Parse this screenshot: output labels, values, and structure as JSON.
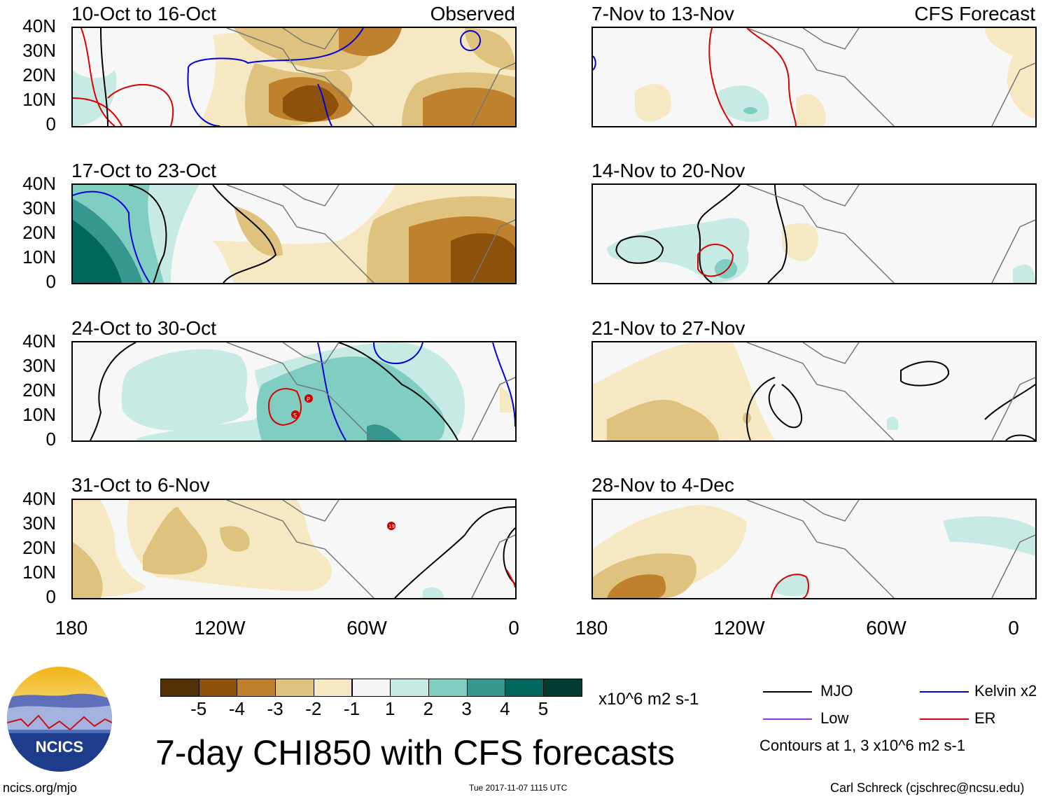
{
  "panels": [
    {
      "title": "10-Oct to 16-Oct",
      "subtitle": "Observed"
    },
    {
      "title": "7-Nov to 13-Nov",
      "subtitle": "CFS Forecast"
    },
    {
      "title": "17-Oct to 23-Oct",
      "subtitle": ""
    },
    {
      "title": "14-Nov to 20-Nov",
      "subtitle": ""
    },
    {
      "title": "24-Oct to 30-Oct",
      "subtitle": ""
    },
    {
      "title": "21-Nov to 27-Nov",
      "subtitle": ""
    },
    {
      "title": "31-Oct to 6-Nov",
      "subtitle": ""
    },
    {
      "title": "28-Nov to 4-Dec",
      "subtitle": ""
    }
  ],
  "lat_labels": [
    "40N",
    "30N",
    "20N",
    "10N",
    "0"
  ],
  "lon_labels": [
    "180",
    "120W",
    "60W",
    "0"
  ],
  "colorbar": {
    "labels": [
      "-5",
      "-4",
      "-3",
      "-2",
      "-1",
      "1",
      "2",
      "3",
      "4",
      "5"
    ],
    "colors": [
      "#543005",
      "#8c510a",
      "#bf812d",
      "#dfc27d",
      "#f6e8c3",
      "#f5f5f5",
      "#c7eae5",
      "#80cdc1",
      "#35978f",
      "#01665e",
      "#003c30"
    ],
    "units": "x10^6 m2 s-1"
  },
  "legend": {
    "items": [
      {
        "label": "MJO",
        "color": "#000000"
      },
      {
        "label": "Kelvin x2",
        "color": "#0000dd"
      },
      {
        "label": "Low",
        "color": "#9933dd"
      },
      {
        "label": "ER",
        "color": "#dd0000"
      }
    ],
    "contours_note": "Contours at 1, 3 x10^6 m2 s-1"
  },
  "title": "7-day CHI850 with CFS forecasts",
  "footer": {
    "left": "ncics.org/mjo",
    "timestamp": "Tue 2017-11-07 1115 UTC",
    "right": "Carl Schreck (cjschrec@ncsu.edu)",
    "logo_text": "NCICS"
  },
  "storm_labels": [
    "P",
    "S",
    "19"
  ]
}
